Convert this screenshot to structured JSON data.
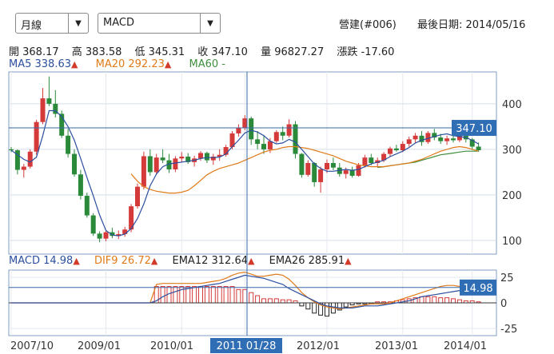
{
  "controls": {
    "period_select": {
      "value": "月線"
    },
    "indicator_select": {
      "value": "MACD"
    }
  },
  "header": {
    "stock": "營建(#006)",
    "last_date_label": "最後日期: 2014/05/16"
  },
  "quote": {
    "open": "開 368.17",
    "high": "高 383.58",
    "low": "低 345.31",
    "close": "收 347.10",
    "volume": "量 96827.27",
    "change": "漲跌 -17.60"
  },
  "ma_legend": [
    {
      "label": "MA5 338.63",
      "color": "#2c4f9e"
    },
    {
      "label": "MA20 292.23",
      "color": "#e07b1a"
    },
    {
      "label": "MA60 -",
      "color": "#3f8f3f"
    }
  ],
  "macd_legend": [
    {
      "label": "MACD 14.98",
      "color": "#2c4f9e"
    },
    {
      "label": "DIF9 26.72",
      "color": "#e07b1a"
    },
    {
      "label": "EMA12 312.64",
      "color": "#222222"
    },
    {
      "label": "EMA26 285.91",
      "color": "#222222"
    }
  ],
  "price_axis": [
    "400",
    "300",
    "200",
    "100"
  ],
  "macd_axis": [
    "25",
    "0",
    "-25"
  ],
  "x_axis": [
    "2007/10",
    "2009/01",
    "2010/01",
    "2012/01",
    "2013/01",
    "2014/01"
  ],
  "crosshair": {
    "date_label": "2011 01/28",
    "price_label": "347.10",
    "macd_label": "14.98"
  },
  "colors": {
    "up": "#d43a3a",
    "down": "#2a8a3a",
    "ma5": "#2c4f9e",
    "ma20": "#e07b1a",
    "ma60": "#3f8f3f",
    "crosshair": "#3a6aaa"
  },
  "chart_data": {
    "type": "candlestick",
    "price_ylim": [
      70,
      470
    ],
    "macd_ylim": [
      -32,
      32
    ],
    "candles": [
      [
        300,
        305,
        294,
        298
      ],
      [
        298,
        300,
        245,
        255
      ],
      [
        255,
        268,
        238,
        262
      ],
      [
        262,
        300,
        258,
        295
      ],
      [
        295,
        365,
        288,
        360
      ],
      [
        360,
        435,
        355,
        412
      ],
      [
        412,
        460,
        395,
        400
      ],
      [
        400,
        430,
        370,
        378
      ],
      [
        378,
        385,
        325,
        330
      ],
      [
        330,
        345,
        282,
        290
      ],
      [
        290,
        300,
        240,
        245
      ],
      [
        245,
        255,
        190,
        198
      ],
      [
        198,
        205,
        150,
        155
      ],
      [
        155,
        160,
        110,
        115
      ],
      [
        115,
        120,
        96,
        104
      ],
      [
        104,
        122,
        98,
        118
      ],
      [
        118,
        128,
        105,
        110
      ],
      [
        110,
        122,
        103,
        114
      ],
      [
        114,
        130,
        108,
        124
      ],
      [
        124,
        180,
        118,
        175
      ],
      [
        175,
        225,
        170,
        218
      ],
      [
        218,
        295,
        212,
        285
      ],
      [
        285,
        300,
        242,
        250
      ],
      [
        250,
        290,
        245,
        282
      ],
      [
        282,
        300,
        270,
        276
      ],
      [
        276,
        290,
        248,
        256
      ],
      [
        256,
        285,
        250,
        280
      ],
      [
        280,
        294,
        272,
        284
      ],
      [
        284,
        292,
        268,
        272
      ],
      [
        272,
        286,
        262,
        280
      ],
      [
        280,
        296,
        275,
        292
      ],
      [
        292,
        295,
        270,
        276
      ],
      [
        276,
        290,
        266,
        284
      ],
      [
        284,
        300,
        275,
        288
      ],
      [
        288,
        310,
        284,
        305
      ],
      [
        305,
        340,
        300,
        335
      ],
      [
        335,
        355,
        328,
        348
      ],
      [
        348,
        375,
        342,
        368
      ],
      [
        368,
        372,
        310,
        322
      ],
      [
        322,
        340,
        300,
        312
      ],
      [
        312,
        330,
        290,
        300
      ],
      [
        300,
        325,
        292,
        318
      ],
      [
        318,
        342,
        314,
        338
      ],
      [
        338,
        350,
        320,
        330
      ],
      [
        330,
        366,
        326,
        355
      ],
      [
        355,
        362,
        280,
        290
      ],
      [
        290,
        292,
        238,
        244
      ],
      [
        244,
        276,
        240,
        270
      ],
      [
        270,
        272,
        218,
        228
      ],
      [
        228,
        262,
        205,
        256
      ],
      [
        256,
        278,
        248,
        270
      ],
      [
        270,
        282,
        254,
        260
      ],
      [
        260,
        270,
        240,
        246
      ],
      [
        246,
        260,
        236,
        254
      ],
      [
        254,
        262,
        238,
        242
      ],
      [
        242,
        270,
        240,
        265
      ],
      [
        265,
        288,
        260,
        282
      ],
      [
        282,
        290,
        265,
        270
      ],
      [
        270,
        282,
        262,
        276
      ],
      [
        276,
        294,
        272,
        290
      ],
      [
        290,
        306,
        285,
        302
      ],
      [
        302,
        310,
        295,
        298
      ],
      [
        298,
        318,
        294,
        312
      ],
      [
        312,
        328,
        306,
        322
      ],
      [
        322,
        336,
        314,
        330
      ],
      [
        330,
        340,
        308,
        316
      ],
      [
        316,
        340,
        312,
        336
      ],
      [
        336,
        345,
        320,
        326
      ],
      [
        326,
        334,
        312,
        318
      ],
      [
        318,
        330,
        310,
        324
      ],
      [
        324,
        332,
        315,
        320
      ],
      [
        320,
        350,
        316,
        344
      ],
      [
        344,
        358,
        315,
        322
      ],
      [
        322,
        325,
        300,
        306
      ],
      [
        306,
        315,
        295,
        298
      ]
    ],
    "ma5": [
      298,
      288,
      278,
      272,
      283,
      330,
      385,
      385,
      372,
      350,
      320,
      280,
      238,
      198,
      156,
      122,
      112,
      110,
      114,
      126,
      148,
      180,
      220,
      246,
      262,
      268,
      270,
      272,
      274,
      276,
      280,
      282,
      282,
      283,
      290,
      306,
      320,
      336,
      342,
      338,
      330,
      318,
      312,
      314,
      322,
      316,
      300,
      284,
      268,
      258,
      252,
      252,
      254,
      256,
      254,
      256,
      262,
      268,
      272,
      276,
      284,
      290,
      296,
      304,
      314,
      320,
      324,
      328,
      332,
      334,
      330,
      328,
      326,
      320,
      312
    ],
    "ma20": [
      null,
      null,
      null,
      null,
      null,
      null,
      null,
      null,
      null,
      null,
      null,
      null,
      null,
      null,
      null,
      null,
      null,
      null,
      null,
      246,
      230,
      218,
      212,
      208,
      206,
      204,
      204,
      206,
      210,
      220,
      232,
      244,
      252,
      258,
      262,
      266,
      270,
      276,
      282,
      288,
      294,
      298,
      300,
      304,
      306,
      306,
      304,
      302,
      298,
      294,
      290,
      286,
      280,
      274,
      270,
      266,
      264,
      262,
      262,
      262,
      264,
      266,
      268,
      270,
      274,
      278,
      284,
      290,
      296,
      300,
      304,
      306,
      304,
      300,
      296
    ],
    "ma60": [
      null,
      null,
      null,
      null,
      null,
      null,
      null,
      null,
      null,
      null,
      null,
      null,
      null,
      null,
      null,
      null,
      null,
      null,
      null,
      null,
      null,
      null,
      null,
      null,
      null,
      null,
      null,
      null,
      null,
      null,
      null,
      null,
      null,
      null,
      null,
      null,
      null,
      null,
      null,
      null,
      null,
      null,
      null,
      null,
      null,
      null,
      null,
      null,
      null,
      null,
      null,
      null,
      null,
      null,
      null,
      null,
      null,
      null,
      260,
      262,
      264,
      266,
      268,
      270,
      272,
      276,
      280,
      284,
      288,
      290,
      292,
      294,
      296,
      296,
      296
    ],
    "macd": [
      0,
      0,
      0,
      0,
      0,
      0,
      0,
      0,
      0,
      0,
      0,
      0,
      0,
      0,
      0,
      0,
      0,
      0,
      0,
      0,
      0,
      0,
      0,
      2,
      6,
      9,
      11,
      13,
      14,
      15,
      16,
      17,
      18,
      19,
      21,
      23,
      25,
      27,
      26,
      25,
      24,
      22,
      20,
      18,
      14,
      11,
      8,
      5,
      2,
      -1,
      -3,
      -4,
      -5,
      -5,
      -5,
      -4,
      -3,
      -3,
      -3,
      -2,
      -1,
      0,
      1,
      2,
      4,
      6,
      7,
      8,
      9,
      10,
      11,
      12,
      13,
      14,
      15
    ],
    "dif": [
      0,
      0,
      0,
      0,
      0,
      0,
      0,
      0,
      0,
      0,
      0,
      0,
      0,
      0,
      0,
      0,
      0,
      0,
      0,
      0,
      0,
      0,
      0,
      18,
      19,
      19,
      19,
      19,
      19,
      19,
      19,
      20,
      21,
      22,
      24,
      27,
      29,
      30,
      28,
      26,
      26,
      27,
      28,
      27,
      23,
      17,
      10,
      5,
      1,
      -2,
      -4,
      -5,
      -6,
      -5,
      -4,
      -3,
      -2,
      -1,
      -1,
      -1,
      0,
      2,
      4,
      6,
      8,
      10,
      12,
      14,
      16,
      17,
      17,
      16,
      16,
      16,
      16
    ],
    "hist": [
      0,
      0,
      0,
      0,
      0,
      0,
      0,
      0,
      0,
      0,
      0,
      0,
      0,
      0,
      0,
      0,
      0,
      0,
      0,
      0,
      0,
      0,
      0,
      16,
      16,
      16,
      16,
      16,
      16,
      16,
      16,
      16,
      16,
      16,
      16,
      16,
      13,
      13,
      10,
      7,
      4,
      4,
      4,
      3,
      3,
      2,
      -3,
      -6,
      -10,
      -12,
      -13,
      -10,
      -7,
      -4,
      -2,
      -1,
      -1,
      -1,
      1,
      1,
      1,
      2,
      3,
      4,
      5,
      6,
      6,
      6,
      5,
      5,
      4,
      3,
      2,
      2,
      1
    ],
    "x_tick_labels": [
      "2007/10",
      "2009/01",
      "2010/01",
      "2011 01/28",
      "2012/01",
      "2013/01",
      "2014/01"
    ]
  }
}
